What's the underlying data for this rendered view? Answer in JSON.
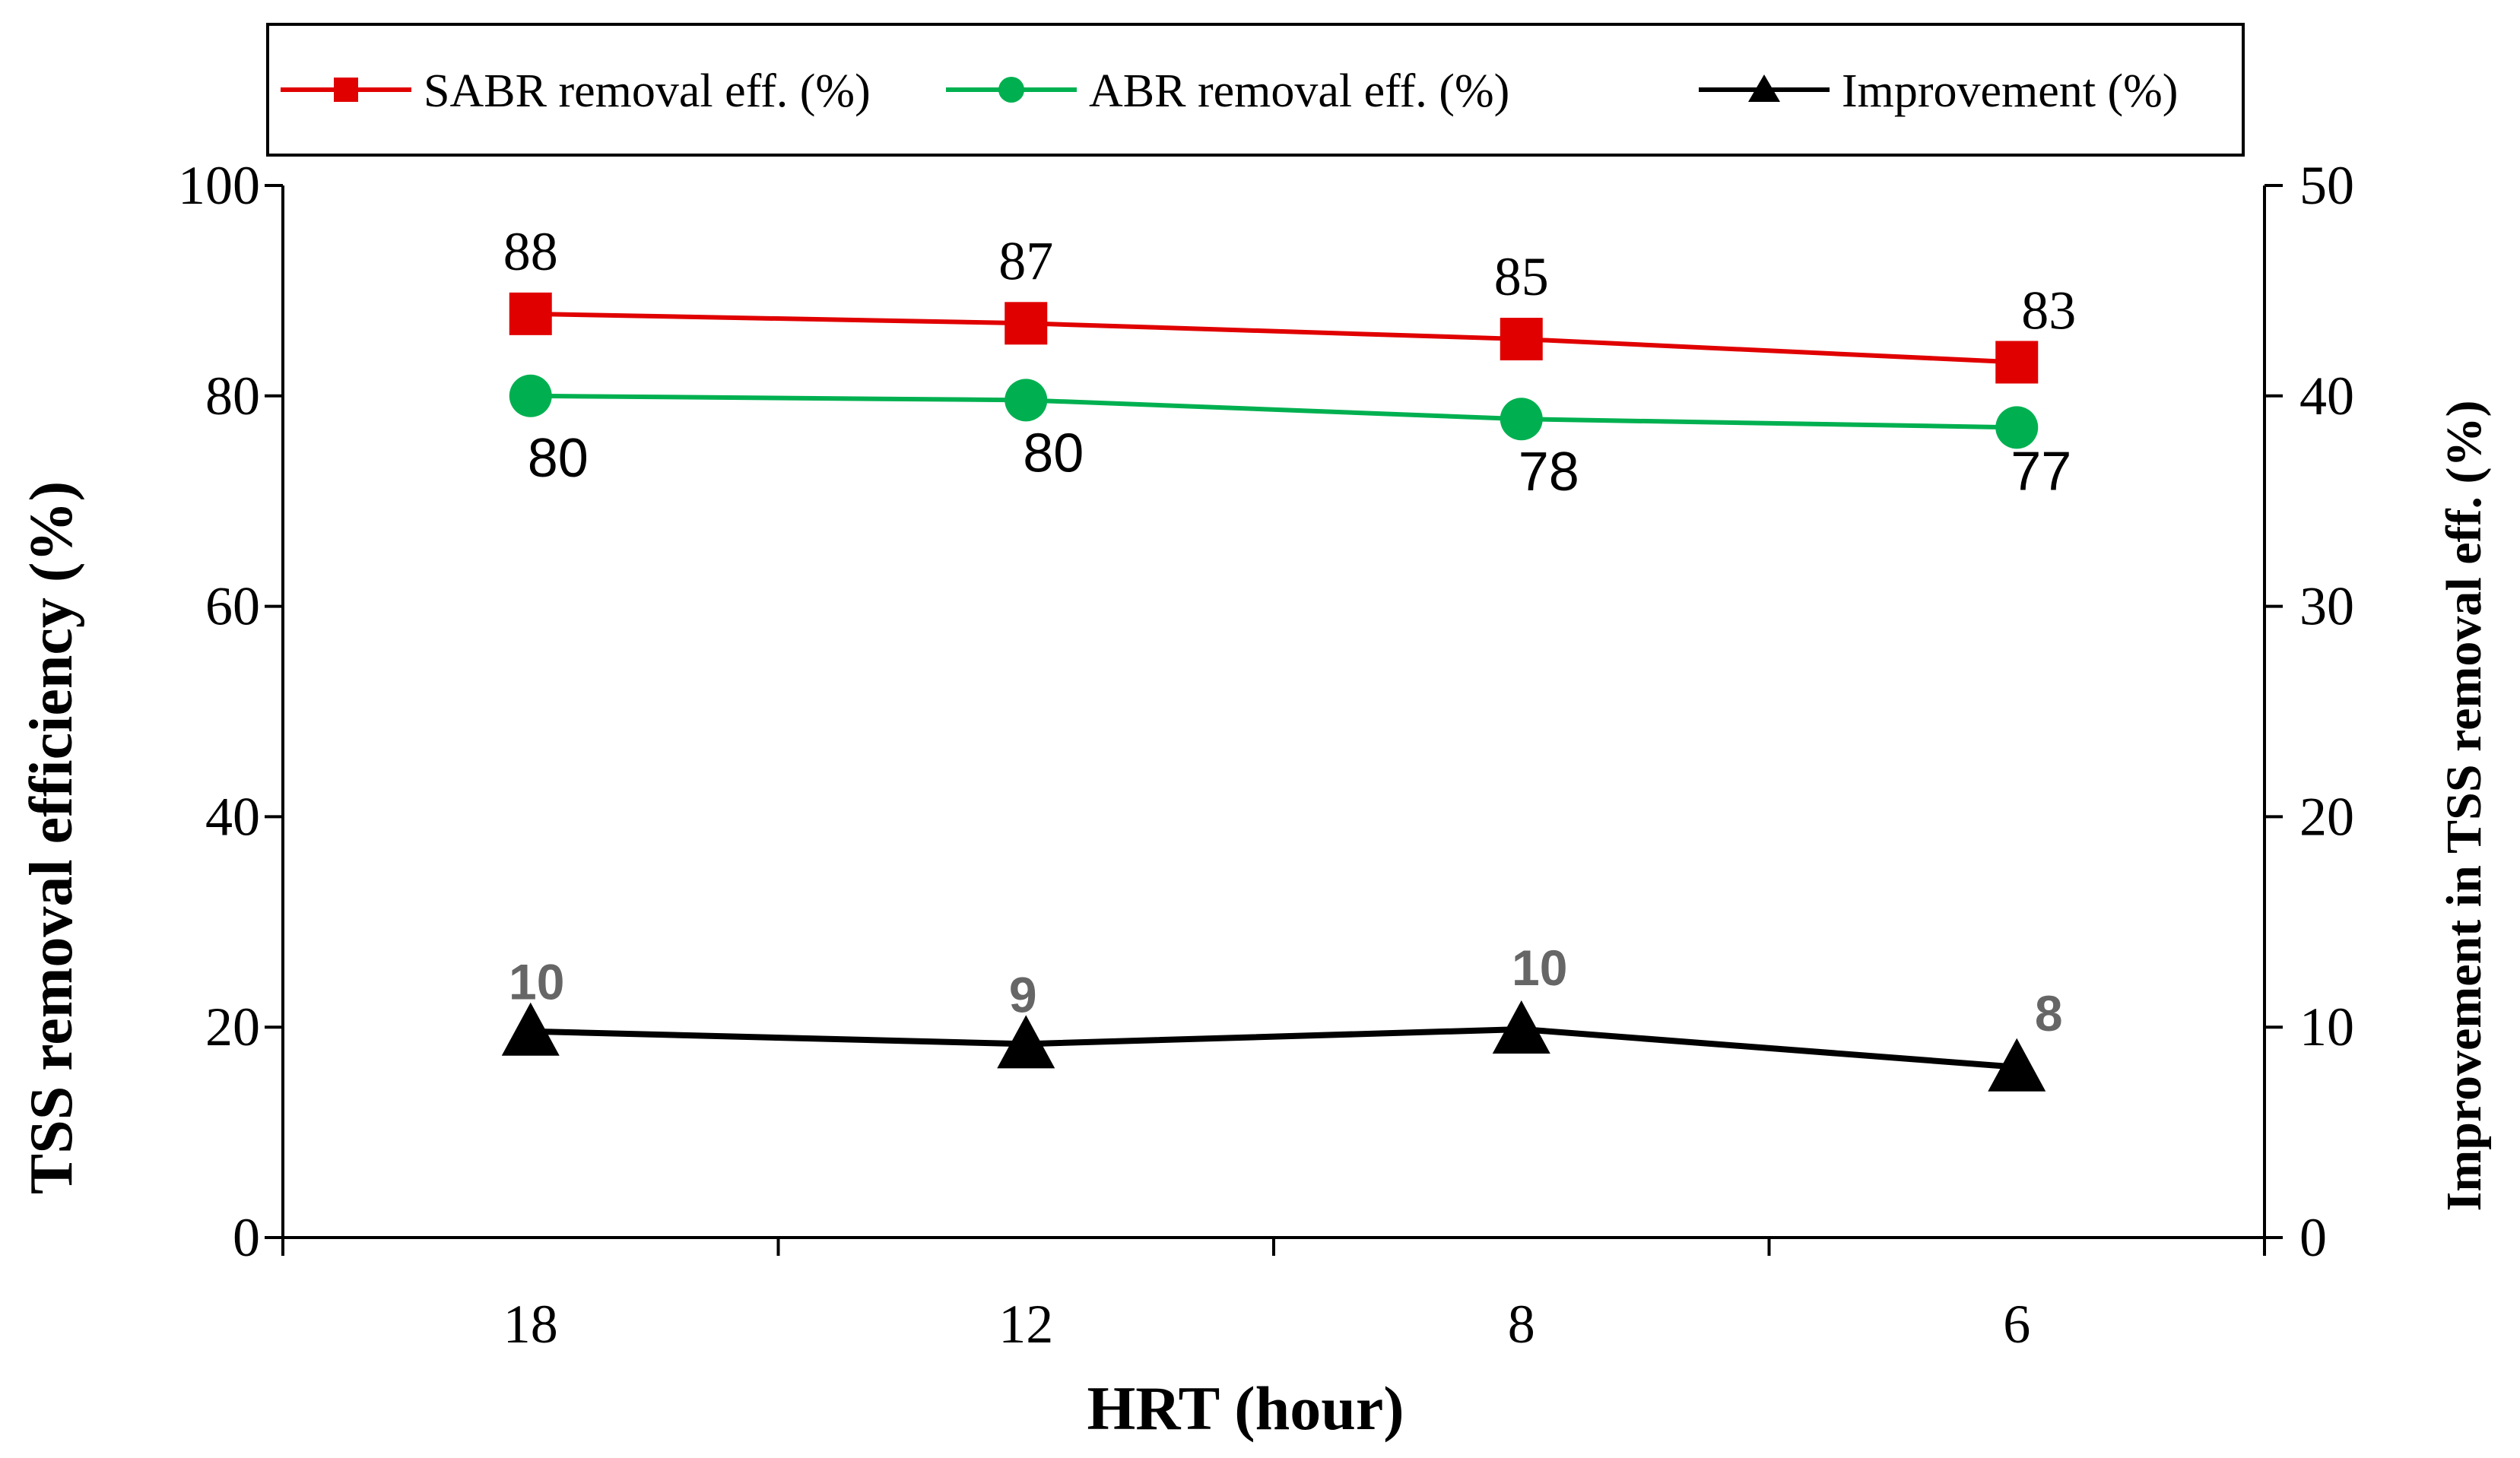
{
  "chart_data": {
    "type": "line",
    "categories": [
      "18",
      "12",
      "8",
      "6"
    ],
    "xlabel": "HRT (hour)",
    "ylabel_left": "TSS removal efficiency (%)",
    "ylabel_right": "Improvement in TSS removal eff. (%)",
    "ylim_left": [
      0,
      100
    ],
    "ylim_right": [
      0,
      50
    ],
    "yticks_left": [
      0,
      20,
      40,
      60,
      80,
      100
    ],
    "yticks_right": [
      0,
      10,
      20,
      30,
      40,
      50
    ],
    "legend_position": "top",
    "series": [
      {
        "name": "SABR removal eff. (%)",
        "axis": "left",
        "marker": "square",
        "color": "#e00000",
        "values": [
          87.8,
          86.9,
          85.4,
          83.2
        ],
        "labels": [
          "88",
          "87",
          "85",
          "83"
        ]
      },
      {
        "name": "ABR removal eff. (%)",
        "axis": "left",
        "marker": "circle",
        "color": "#00b050",
        "values": [
          80,
          79.6,
          77.8,
          77
        ],
        "labels": [
          "80",
          "80",
          "78",
          "77"
        ]
      },
      {
        "name": "Improvement (%)",
        "axis": "right",
        "marker": "triangle",
        "color": "#000000",
        "label_color": "#666666",
        "values": [
          9.8,
          9.2,
          9.9,
          8.1
        ],
        "labels": [
          "10",
          "9",
          "10",
          "8"
        ]
      }
    ]
  }
}
